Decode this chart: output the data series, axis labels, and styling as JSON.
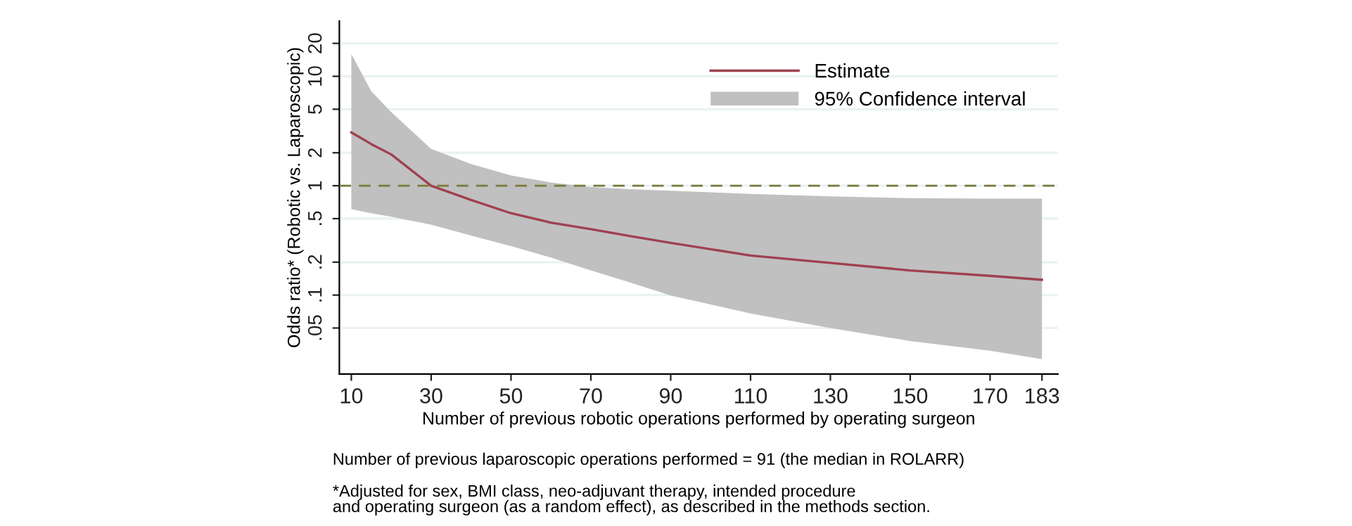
{
  "chart_data": {
    "type": "line",
    "xlabel": "Number of previous robotic operations performed by operating surgeon",
    "ylabel": "Odds ratio* (Robotic vs. Laparoscopic)",
    "x": [
      10,
      15,
      20,
      30,
      40,
      50,
      60,
      70,
      80,
      90,
      110,
      130,
      150,
      170,
      183
    ],
    "series": [
      {
        "name": "95% Confidence interval",
        "type": "area",
        "color": "#c0c0c0",
        "values": [
          null,
          null,
          null,
          null,
          null,
          null,
          null,
          null,
          null,
          null,
          null,
          null,
          null,
          null,
          null
        ],
        "lower": [
          0.61,
          0.56,
          0.52,
          0.44,
          0.35,
          0.28,
          0.22,
          0.168,
          0.13,
          0.099,
          0.068,
          0.05,
          0.038,
          0.031,
          0.026
        ],
        "upper": [
          16,
          7.3,
          4.7,
          2.17,
          1.58,
          1.24,
          1.07,
          0.97,
          0.93,
          0.9,
          0.84,
          0.8,
          0.77,
          0.76,
          0.76
        ]
      },
      {
        "name": "Estimate",
        "color": "#a0404f",
        "values": [
          3.07,
          2.4,
          1.93,
          1.0,
          0.74,
          0.56,
          0.46,
          0.4,
          0.345,
          0.3,
          0.23,
          0.197,
          0.168,
          0.15,
          0.138
        ]
      }
    ],
    "log": "y",
    "xlim": [
      7,
      187
    ],
    "xticks": [
      10,
      30,
      50,
      70,
      90,
      110,
      130,
      150,
      170,
      183
    ],
    "ylim": [
      0.019,
      32
    ],
    "yticks": [
      {
        "value": 0.05,
        "label": ".05"
      },
      {
        "value": 0.1,
        "label": ".1"
      },
      {
        "value": 0.2,
        "label": ".2"
      },
      {
        "value": 0.5,
        "label": ".5"
      },
      1,
      2,
      5,
      10,
      20
    ],
    "ref_lines": [
      {
        "axis": "y",
        "value": 1,
        "color": "#7a7a3a",
        "line_style": "dashed"
      }
    ],
    "grid": "y",
    "legend": "top right",
    "marker": "none",
    "annotations": [
      "Number of previous laparoscopic operations performed = 91 (the median in ROLARR)",
      "*Adjusted for sex, BMI class, neo-adjuvant therapy, intended procedure\nand operating surgeon (as a random effect), as described in the methods section."
    ]
  }
}
